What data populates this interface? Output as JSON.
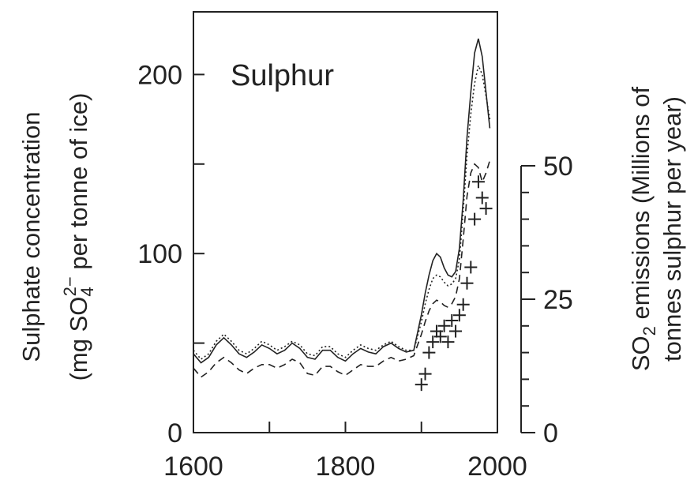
{
  "chart_data": {
    "type": "line",
    "title": "Sulphur",
    "x": {
      "ticks": [
        1600,
        1800,
        2000
      ],
      "minor_ticks": [
        1700,
        1900
      ],
      "range": [
        1600,
        2000
      ]
    },
    "y_left": {
      "label_line1": "Sulphate concentration",
      "label_line2_prefix": "(mg SO",
      "label_line2_sub": "4",
      "label_line2_sup": "2−",
      "label_line2_suffix": "  per tonne of ice)",
      "ticks": [
        0,
        100,
        200
      ],
      "minor_ticks": [
        50,
        150
      ],
      "range": [
        0,
        235
      ]
    },
    "y_right": {
      "label_line1_prefix": "SO",
      "label_line1_sub": "2",
      "label_line1_suffix": " emissions (Millions of",
      "label_line2": "tonnes sulphur per year)",
      "ticks": [
        0,
        25,
        50
      ],
      "minor_ticks": [
        5,
        10,
        15,
        20,
        30,
        35,
        40,
        45
      ],
      "range": [
        0,
        50
      ]
    },
    "series": [
      {
        "style": "solid",
        "x": [
          1600,
          1610,
          1620,
          1630,
          1640,
          1650,
          1660,
          1670,
          1680,
          1690,
          1700,
          1710,
          1720,
          1730,
          1740,
          1750,
          1760,
          1770,
          1780,
          1790,
          1800,
          1810,
          1820,
          1830,
          1840,
          1850,
          1860,
          1870,
          1880,
          1890,
          1900,
          1905,
          1910,
          1915,
          1920,
          1925,
          1930,
          1935,
          1940,
          1945,
          1950,
          1955,
          1960,
          1965,
          1970,
          1975,
          1980,
          1985,
          1990
        ],
        "y": [
          44,
          39,
          42,
          49,
          53,
          49,
          44,
          42,
          45,
          49,
          47,
          44,
          46,
          50,
          47,
          42,
          41,
          46,
          46,
          42,
          40,
          44,
          47,
          45,
          44,
          48,
          50,
          47,
          45,
          46,
          66,
          78,
          88,
          96,
          100,
          98,
          92,
          88,
          87,
          90,
          103,
          130,
          165,
          190,
          212,
          220,
          210,
          190,
          170
        ]
      },
      {
        "style": "dotted",
        "x": [
          1600,
          1610,
          1620,
          1630,
          1640,
          1650,
          1660,
          1670,
          1680,
          1690,
          1700,
          1710,
          1720,
          1730,
          1740,
          1750,
          1760,
          1770,
          1780,
          1790,
          1800,
          1810,
          1820,
          1830,
          1840,
          1850,
          1860,
          1870,
          1880,
          1890,
          1900,
          1905,
          1910,
          1915,
          1920,
          1925,
          1930,
          1935,
          1940,
          1945,
          1950,
          1955,
          1960,
          1965,
          1970,
          1975,
          1980,
          1985,
          1990
        ],
        "y": [
          46,
          41,
          44,
          51,
          55,
          51,
          46,
          44,
          47,
          51,
          49,
          46,
          48,
          51,
          49,
          44,
          43,
          48,
          48,
          44,
          42,
          46,
          49,
          47,
          46,
          49,
          51,
          48,
          46,
          46,
          62,
          72,
          80,
          86,
          88,
          87,
          84,
          82,
          83,
          86,
          97,
          124,
          155,
          178,
          195,
          205,
          200,
          188,
          175
        ]
      },
      {
        "style": "dashed",
        "x": [
          1600,
          1610,
          1620,
          1630,
          1640,
          1650,
          1660,
          1670,
          1680,
          1690,
          1700,
          1710,
          1720,
          1730,
          1740,
          1750,
          1760,
          1770,
          1780,
          1790,
          1800,
          1810,
          1820,
          1830,
          1840,
          1850,
          1860,
          1870,
          1880,
          1890,
          1900,
          1905,
          1910,
          1915,
          1920,
          1925,
          1930,
          1935,
          1940,
          1945,
          1950,
          1955,
          1960,
          1965,
          1970,
          1975,
          1980,
          1985,
          1990
        ],
        "y": [
          36,
          31,
          34,
          39,
          42,
          39,
          35,
          33,
          36,
          38,
          38,
          36,
          38,
          41,
          39,
          33,
          32,
          37,
          37,
          34,
          32,
          35,
          38,
          37,
          37,
          40,
          42,
          40,
          41,
          43,
          55,
          62,
          68,
          72,
          74,
          73,
          71,
          70,
          72,
          76,
          86,
          108,
          132,
          145,
          150,
          148,
          140,
          145,
          152
        ]
      }
    ],
    "emissions_points": {
      "marker": "+",
      "x": [
        1900,
        1905,
        1910,
        1915,
        1920,
        1925,
        1930,
        1935,
        1940,
        1945,
        1950,
        1955,
        1960,
        1965,
        1970,
        1975,
        1980,
        1985
      ],
      "y": [
        9,
        11,
        15,
        17,
        19,
        18,
        20,
        17,
        21,
        19,
        22,
        24,
        28,
        31,
        40,
        47,
        44,
        42
      ]
    }
  }
}
